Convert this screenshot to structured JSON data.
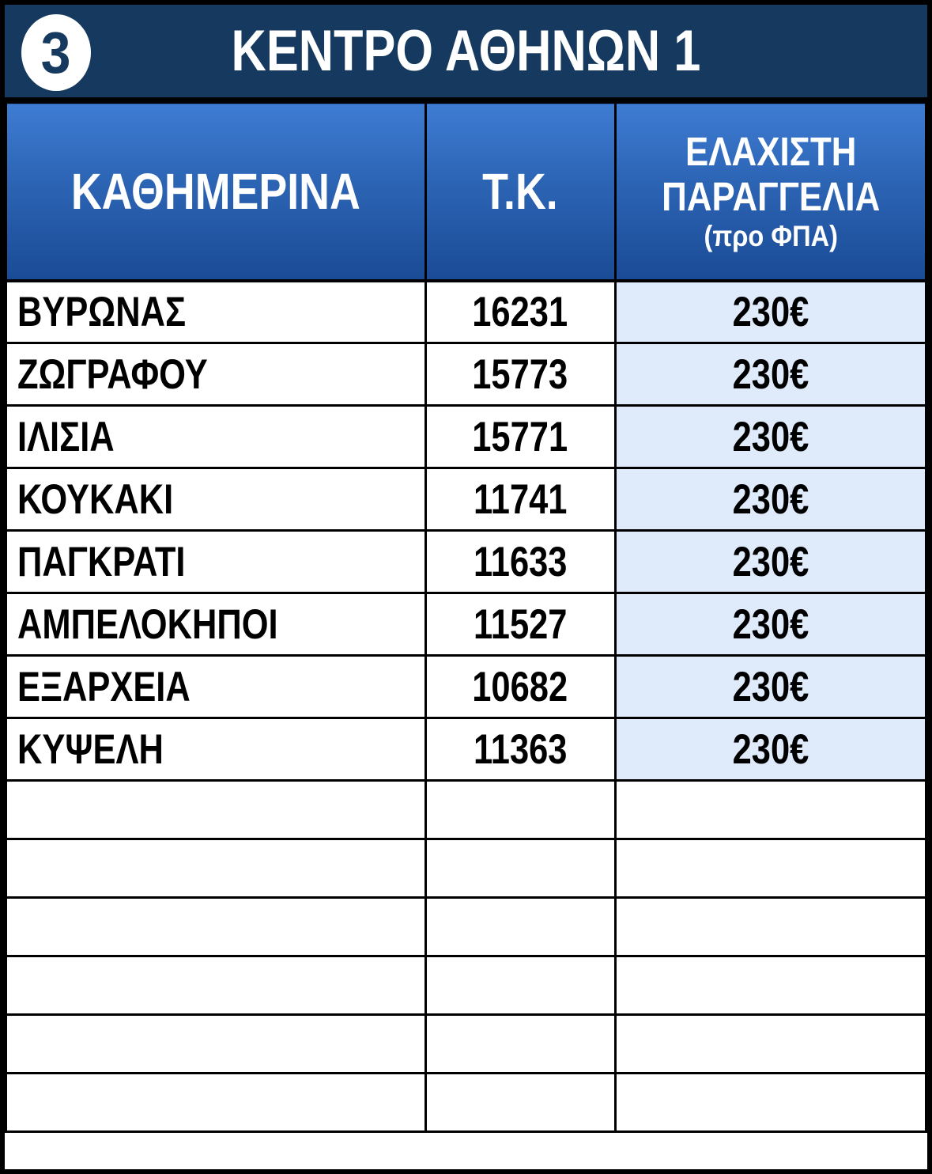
{
  "banner": {
    "badge_number": "3",
    "title": "ΚΕΝΤΡΟ ΑΘΗΝΩΝ 1"
  },
  "table": {
    "headers": {
      "area": "ΚΑΘΗΜΕΡΙΝΑ",
      "postal_code": "Τ.Κ.",
      "min_order_line1": "ΕΛΑΧΙΣΤΗ",
      "min_order_line2": "ΠΑΡΑΓΓΕΛΙΑ",
      "min_order_note": "(προ ΦΠΑ)"
    },
    "rows": [
      {
        "area": "ΒΥΡΩΝΑΣ",
        "postal_code": "16231",
        "min_order": "230€"
      },
      {
        "area": "ΖΩΓΡΑΦΟΥ",
        "postal_code": "15773",
        "min_order": "230€"
      },
      {
        "area": "ΙΛΙΣΙΑ",
        "postal_code": "15771",
        "min_order": "230€"
      },
      {
        "area": "ΚΟΥΚΑΚΙ",
        "postal_code": "11741",
        "min_order": "230€"
      },
      {
        "area": "ΠΑΓΚΡΑΤΙ",
        "postal_code": "11633",
        "min_order": "230€"
      },
      {
        "area": "ΑΜΠΕΛΟΚΗΠΟΙ",
        "postal_code": "11527",
        "min_order": "230€"
      },
      {
        "area": "ΕΞΑΡΧΕΙΑ",
        "postal_code": "10682",
        "min_order": "230€"
      },
      {
        "area": "ΚΥΨΕΛΗ",
        "postal_code": "11363",
        "min_order": "230€"
      }
    ],
    "empty_row_count": 6
  },
  "colors": {
    "banner_navy": "#16395F",
    "header_gradient_top": "#3E7CD3",
    "header_gradient_bottom": "#1A4B96",
    "min_order_cell_bg": "#DFEAFB",
    "border": "#000000"
  }
}
